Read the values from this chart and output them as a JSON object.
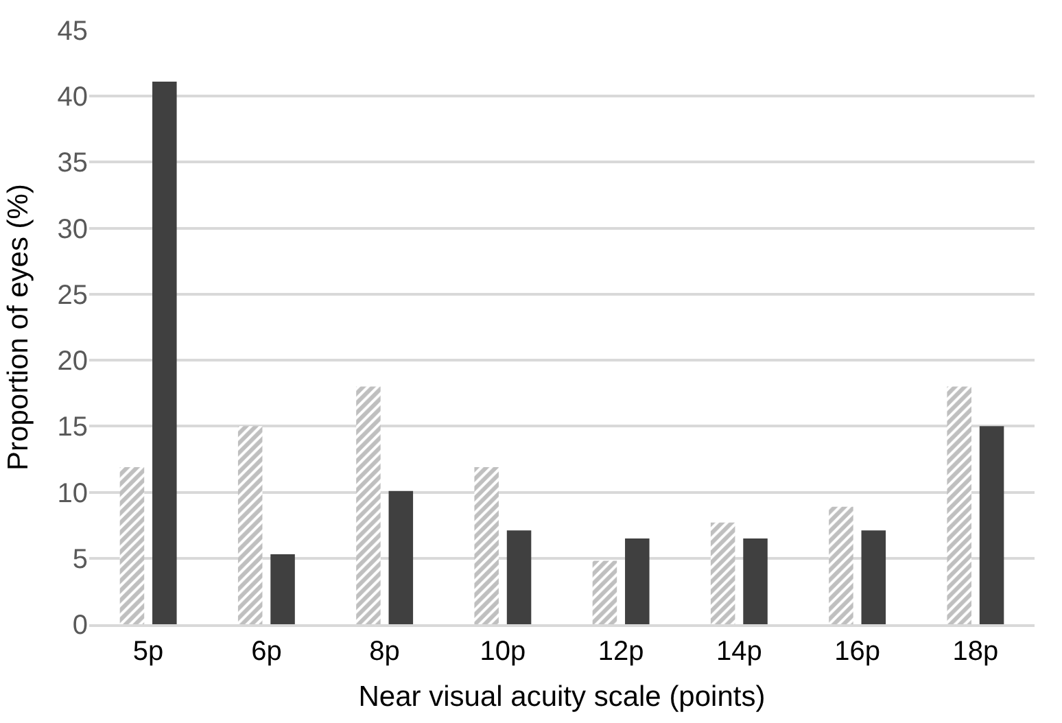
{
  "chart_data": {
    "type": "bar",
    "xlabel": "Near visual acuity scale (points)",
    "ylabel": "Proportion of eyes (%)",
    "categories": [
      "5p",
      "6p",
      "8p",
      "10p",
      "12p",
      "14p",
      "16p",
      "18p"
    ],
    "series": [
      {
        "color": "#7f7f7f",
        "values": [
          11.9,
          15.0,
          18.0,
          11.9,
          4.8,
          7.7,
          8.9,
          18.0
        ]
      },
      {
        "color": "#404040",
        "values": [
          41.1,
          5.3,
          10.1,
          7.1,
          6.5,
          6.5,
          7.1,
          15.0
        ]
      }
    ],
    "ylim": [
      0,
      45
    ],
    "yticks": [
      0,
      5,
      10,
      15,
      20,
      25,
      30,
      35,
      40,
      45
    ],
    "grid": "y"
  }
}
